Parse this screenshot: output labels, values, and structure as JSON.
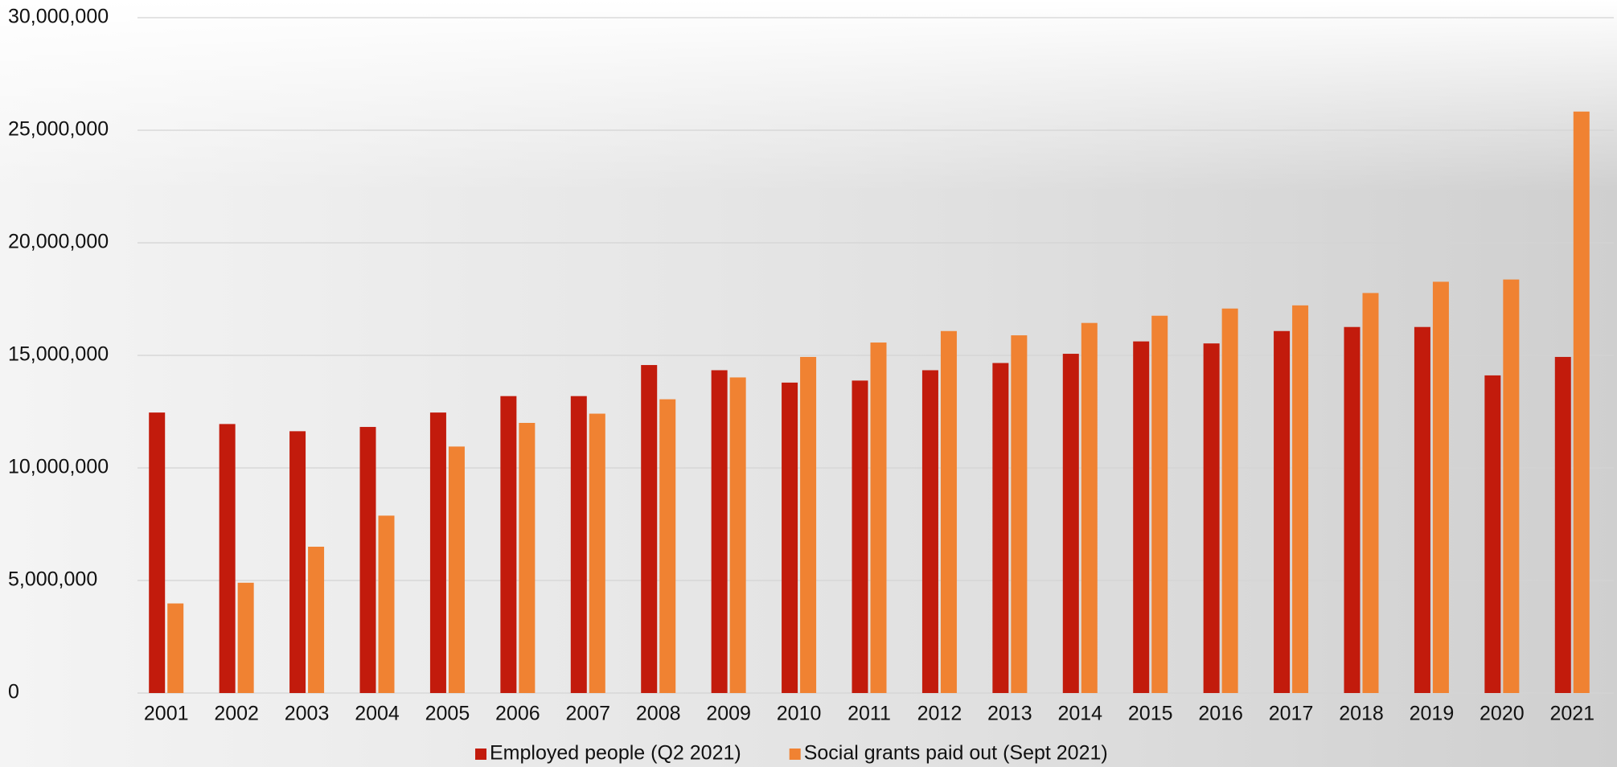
{
  "chart_data": {
    "type": "bar",
    "categories": [
      "2001",
      "2002",
      "2003",
      "2004",
      "2005",
      "2006",
      "2007",
      "2008",
      "2009",
      "2010",
      "2011",
      "2012",
      "2013",
      "2014",
      "2015",
      "2016",
      "2017",
      "2018",
      "2019",
      "2020",
      "2021"
    ],
    "series": [
      {
        "name": "Employed people (Q2 2021)",
        "color": "#c21b0c",
        "values": [
          12460000,
          11950000,
          11630000,
          11820000,
          12460000,
          13190000,
          13190000,
          14570000,
          14340000,
          13790000,
          13880000,
          14340000,
          14660000,
          15070000,
          15620000,
          15530000,
          16080000,
          16260000,
          16260000,
          14110000,
          14930000
        ]
      },
      {
        "name": "Social grants paid out (Sept 2021)",
        "color": "#f08232",
        "values": [
          3980000,
          4900000,
          6500000,
          7880000,
          10950000,
          12000000,
          12410000,
          13050000,
          14020000,
          14930000,
          15570000,
          16080000,
          15890000,
          16440000,
          16760000,
          17080000,
          17220000,
          17770000,
          18270000,
          18370000,
          25830000
        ]
      }
    ],
    "ylim": [
      0,
      30000000
    ],
    "yticks": [
      0,
      {
        "value": 5000000,
        "label": "5,000,000"
      },
      {
        "value": 10000000,
        "label": "10,000,000"
      },
      {
        "value": 15000000,
        "label": "15,000,000"
      },
      {
        "value": 20000000,
        "label": "20,000,000"
      },
      {
        "value": 25000000,
        "label": "25,000,000"
      },
      {
        "value": 30000000,
        "label": "30,000,000"
      }
    ],
    "grid": true,
    "legend": "bottom"
  }
}
